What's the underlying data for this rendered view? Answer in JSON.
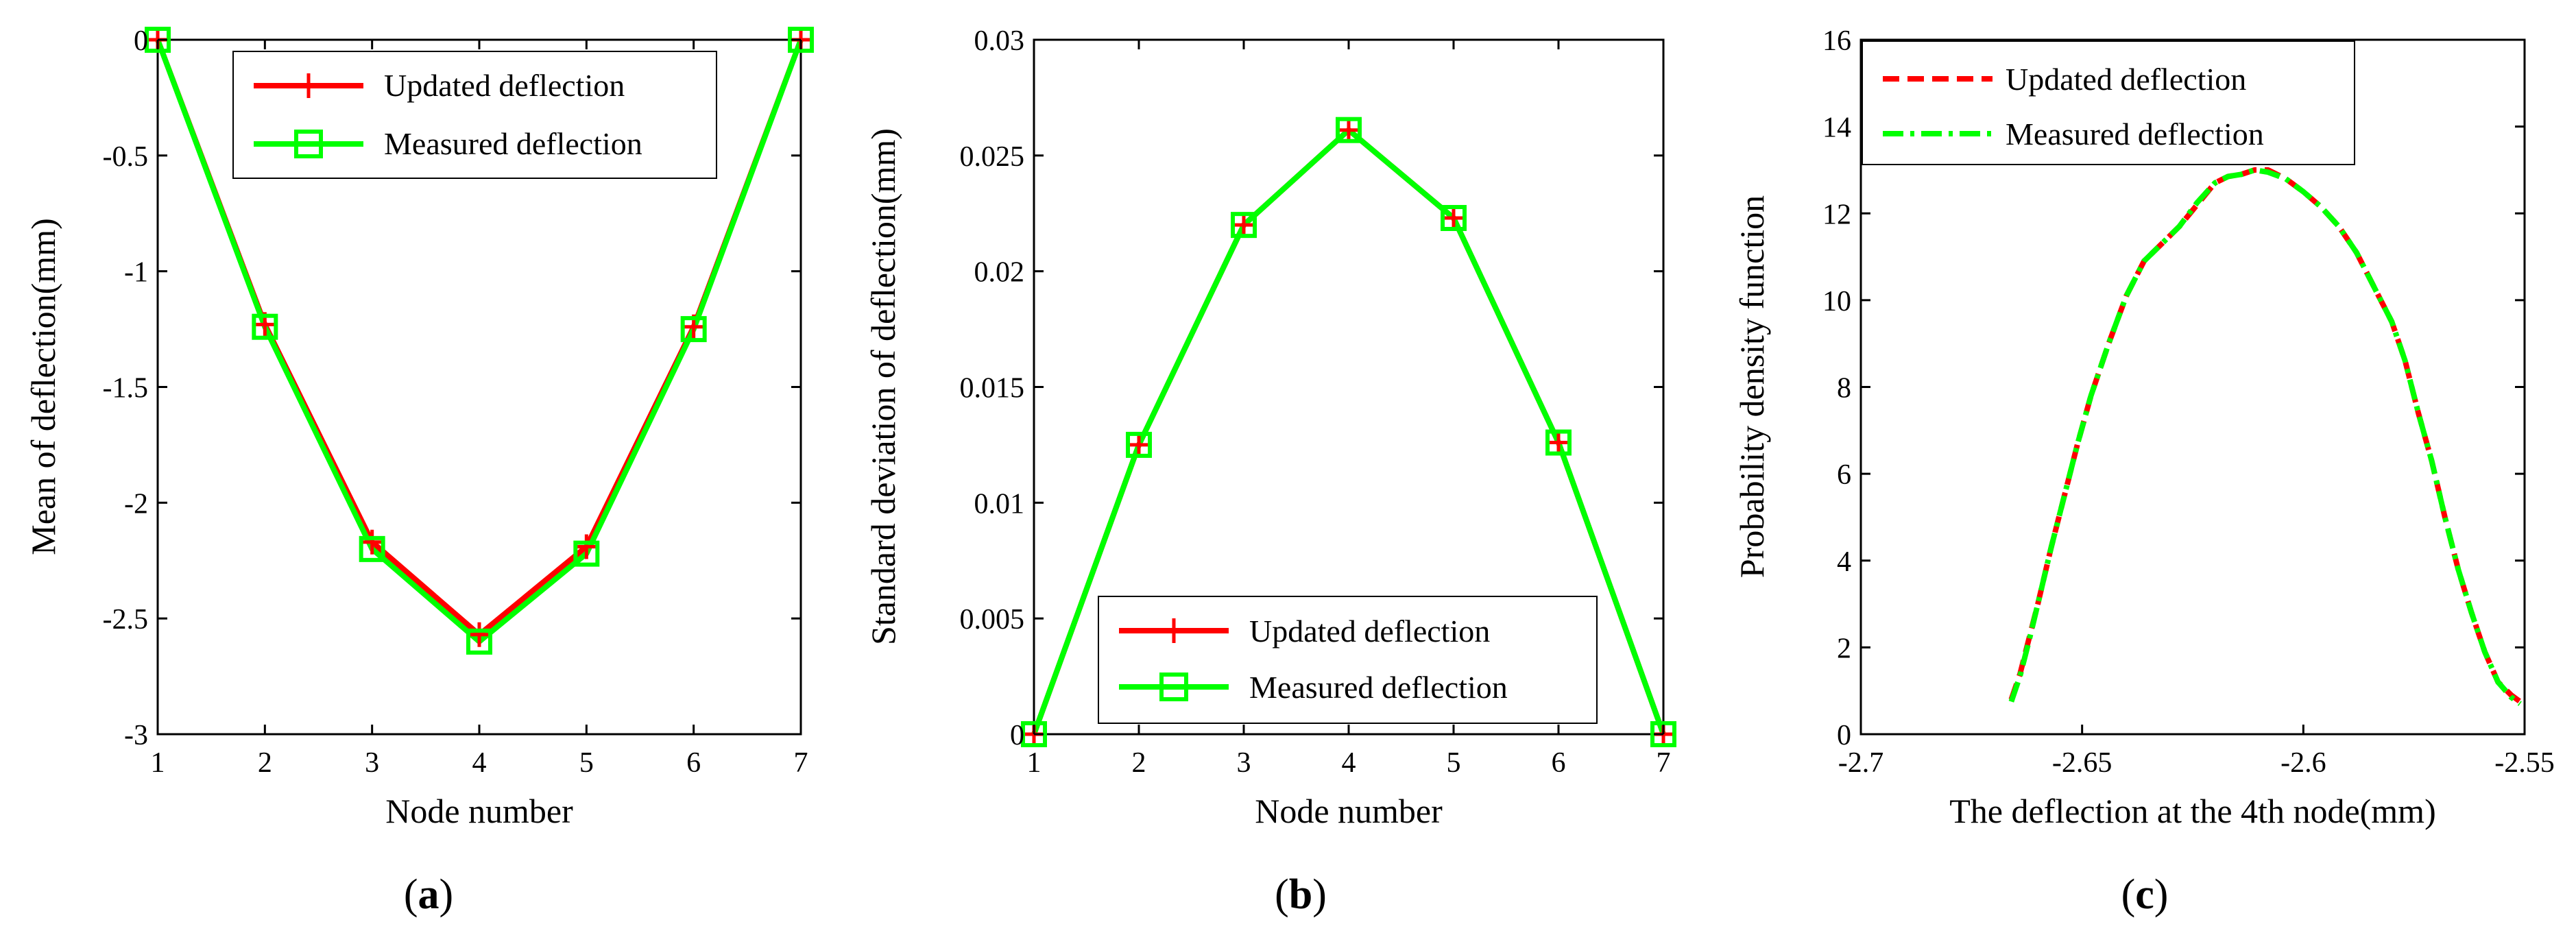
{
  "colors": {
    "updated": "#ff0000",
    "measured": "#00ff00",
    "axis": "#000000",
    "legend_border": "#000000"
  },
  "chart_data": [
    {
      "id": "a",
      "type": "line",
      "caption_prefix": "(",
      "caption_letter": "a",
      "caption_suffix": ")",
      "xlabel": "Node number",
      "ylabel": "Mean of deflection(mm)",
      "xlim": [
        1,
        7
      ],
      "ylim": [
        -3,
        0
      ],
      "xticks": [
        1,
        2,
        3,
        4,
        5,
        6,
        7
      ],
      "xtick_labels": [
        "1",
        "2",
        "3",
        "4",
        "5",
        "6",
        "7"
      ],
      "yticks": [
        0,
        -0.5,
        -1,
        -1.5,
        -2,
        -2.5,
        -3
      ],
      "ytick_labels": [
        "0",
        "-0.5",
        "-1",
        "-1.5",
        "-2",
        "-2.5",
        "-3"
      ],
      "legend_position": "top-center",
      "series": [
        {
          "name": "Updated deflection",
          "marker": "plus",
          "x": [
            1,
            2,
            3,
            4,
            5,
            6,
            7
          ],
          "values": [
            0,
            -1.23,
            -2.17,
            -2.57,
            -2.19,
            -1.24,
            0
          ]
        },
        {
          "name": "Measured deflection",
          "marker": "square",
          "x": [
            1,
            2,
            3,
            4,
            5,
            6,
            7
          ],
          "values": [
            0,
            -1.24,
            -2.2,
            -2.6,
            -2.22,
            -1.25,
            0
          ]
        }
      ]
    },
    {
      "id": "b",
      "type": "line",
      "caption_prefix": "(",
      "caption_letter": "b",
      "caption_suffix": ")",
      "xlabel": "Node number",
      "ylabel": "Standard deviation of deflection(mm)",
      "xlim": [
        1,
        7
      ],
      "ylim": [
        0,
        0.03
      ],
      "xticks": [
        1,
        2,
        3,
        4,
        5,
        6,
        7
      ],
      "xtick_labels": [
        "1",
        "2",
        "3",
        "4",
        "5",
        "6",
        "7"
      ],
      "yticks": [
        0,
        0.005,
        0.01,
        0.015,
        0.02,
        0.025,
        0.03
      ],
      "ytick_labels": [
        "0",
        "0.005",
        "0.01",
        "0.015",
        "0.02",
        "0.025",
        "0.03"
      ],
      "legend_position": "bottom-right",
      "series": [
        {
          "name": "Updated deflection",
          "marker": "plus",
          "x": [
            1,
            2,
            3,
            4,
            5,
            6,
            7
          ],
          "values": [
            0,
            0.0125,
            0.022,
            0.0261,
            0.0223,
            0.0126,
            0
          ]
        },
        {
          "name": "Measured deflection",
          "marker": "square",
          "x": [
            1,
            2,
            3,
            4,
            5,
            6,
            7
          ],
          "values": [
            0,
            0.0125,
            0.022,
            0.0261,
            0.0223,
            0.0126,
            0
          ]
        }
      ]
    },
    {
      "id": "c",
      "type": "line",
      "caption_prefix": "(",
      "caption_letter": "c",
      "caption_suffix": ")",
      "xlabel": "The deflection at the 4th node(mm)",
      "ylabel": "Probability density function",
      "xlim": [
        -2.7,
        -2.55
      ],
      "ylim": [
        0,
        16
      ],
      "xticks": [
        -2.7,
        -2.65,
        -2.6,
        -2.55
      ],
      "xtick_labels": [
        "-2.7",
        "-2.65",
        "-2.6",
        "-2.55"
      ],
      "yticks": [
        0,
        2,
        4,
        6,
        8,
        10,
        12,
        14,
        16
      ],
      "ytick_labels": [
        "0",
        "2",
        "4",
        "6",
        "8",
        "10",
        "12",
        "14",
        "16"
      ],
      "legend_position": "top-left",
      "series": [
        {
          "name": "Updated deflection",
          "marker": "none",
          "dash": "dashed",
          "x": [
            -2.666,
            -2.664,
            -2.662,
            -2.66,
            -2.657,
            -2.654,
            -2.651,
            -2.648,
            -2.644,
            -2.64,
            -2.636,
            -2.632,
            -2.628,
            -2.624,
            -2.62,
            -2.617,
            -2.614,
            -2.611,
            -2.608,
            -2.604,
            -2.6,
            -2.596,
            -2.592,
            -2.588,
            -2.584,
            -2.58,
            -2.577,
            -2.574,
            -2.571,
            -2.568,
            -2.565,
            -2.562,
            -2.559,
            -2.556,
            -2.553,
            -2.551
          ],
          "values": [
            0.8,
            1.4,
            2.2,
            3.0,
            4.3,
            5.5,
            6.7,
            7.8,
            9.0,
            10.1,
            10.9,
            11.3,
            11.7,
            12.2,
            12.7,
            12.85,
            12.9,
            13.0,
            13.0,
            12.8,
            12.5,
            12.15,
            11.7,
            11.1,
            10.3,
            9.5,
            8.6,
            7.4,
            6.3,
            5.0,
            3.8,
            2.8,
            1.9,
            1.2,
            0.9,
            0.75
          ]
        },
        {
          "name": "Measured deflection",
          "marker": "none",
          "dash": "dashdot",
          "x": [
            -2.666,
            -2.664,
            -2.662,
            -2.66,
            -2.657,
            -2.654,
            -2.651,
            -2.648,
            -2.644,
            -2.64,
            -2.636,
            -2.632,
            -2.628,
            -2.624,
            -2.62,
            -2.617,
            -2.614,
            -2.611,
            -2.608,
            -2.604,
            -2.6,
            -2.596,
            -2.592,
            -2.588,
            -2.584,
            -2.58,
            -2.577,
            -2.574,
            -2.571,
            -2.568,
            -2.565,
            -2.562,
            -2.559,
            -2.556,
            -2.553,
            -2.551
          ],
          "values": [
            0.75,
            1.35,
            2.15,
            3.0,
            4.3,
            5.5,
            6.7,
            7.8,
            9.0,
            10.1,
            10.9,
            11.3,
            11.7,
            12.25,
            12.7,
            12.85,
            12.9,
            13.0,
            12.95,
            12.8,
            12.5,
            12.15,
            11.7,
            11.1,
            10.3,
            9.5,
            8.6,
            7.4,
            6.3,
            5.0,
            3.8,
            2.8,
            1.9,
            1.2,
            0.85,
            0.7
          ]
        }
      ]
    }
  ]
}
